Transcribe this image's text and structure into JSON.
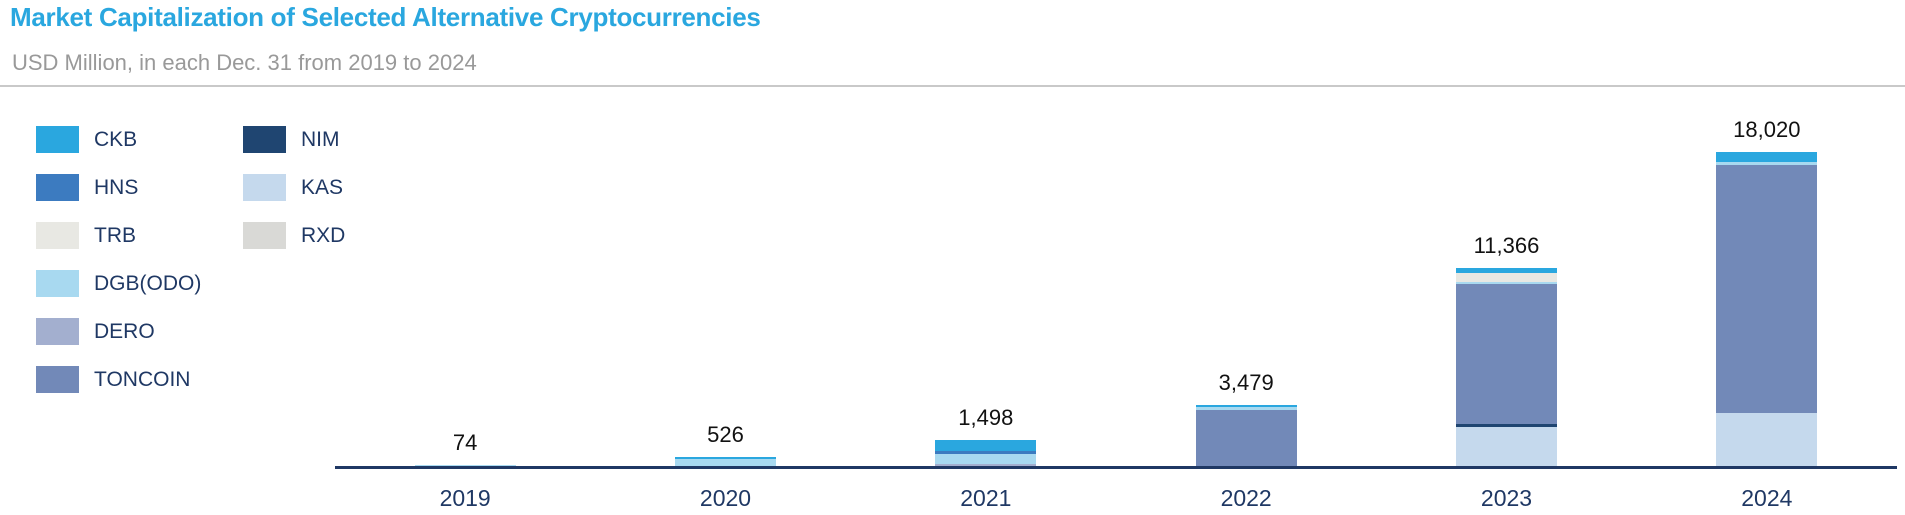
{
  "header": {
    "title": "Market Capitalization of Selected Alternative Cryptocurrencies",
    "subtitle": "USD Million, in each Dec. 31 from 2019 to 2024"
  },
  "colors": {
    "title_text": "#2AA7DF",
    "subtitle_text": "#999999",
    "axis_and_category_text": "#1F3864",
    "value_label_text": "#111111",
    "divider_line": "#C9C9C9"
  },
  "chart_data": {
    "type": "bar",
    "stacked": true,
    "title": "Market Capitalization of Selected Alternative Cryptocurrencies",
    "subtitle": "USD Million, in each Dec. 31 from 2019 to 2024",
    "unit": "USD Million",
    "categories": [
      "2019",
      "2020",
      "2021",
      "2022",
      "2023",
      "2024"
    ],
    "totals": [
      74,
      526,
      1498,
      3479,
      11366,
      18020
    ],
    "total_labels": [
      "74",
      "526",
      "1,498",
      "3,479",
      "11,366",
      "18,020"
    ],
    "series": [
      {
        "name": "CKB",
        "color": "#2AA7DF",
        "values": [
          0,
          96,
          640,
          110,
          290,
          560
        ]
      },
      {
        "name": "HNS",
        "color": "#3C7BC0",
        "values": [
          0,
          0,
          145,
          0,
          0,
          0
        ]
      },
      {
        "name": "TRB",
        "color": "#E8E8E3",
        "values": [
          0,
          0,
          0,
          0,
          510,
          0
        ]
      },
      {
        "name": "DGB(ODO)",
        "color": "#A8D9F0",
        "values": [
          74,
          430,
          570,
          165,
          100,
          210
        ]
      },
      {
        "name": "DERO",
        "color": "#A3AFCF",
        "values": [
          0,
          0,
          143,
          0,
          0,
          0
        ]
      },
      {
        "name": "TONCOIN",
        "color": "#7289B8",
        "values": [
          0,
          0,
          0,
          3204,
          8070,
          14200
        ]
      },
      {
        "name": "NIM",
        "color": "#1F4571",
        "values": [
          0,
          0,
          0,
          0,
          170,
          0
        ]
      },
      {
        "name": "KAS",
        "color": "#C5D9ED",
        "values": [
          0,
          0,
          0,
          0,
          2226,
          3050
        ]
      },
      {
        "name": "RXD",
        "color": "#D9D9D6",
        "values": [
          0,
          0,
          0,
          0,
          0,
          0
        ]
      }
    ],
    "stack_order_bottom_to_top": [
      "RXD",
      "KAS",
      "NIM",
      "TONCOIN",
      "DERO",
      "DGB(ODO)",
      "TRB",
      "HNS",
      "CKB"
    ],
    "legend_columns": [
      [
        "CKB",
        "HNS",
        "TRB",
        "DGB(ODO)",
        "DERO",
        "TONCOIN"
      ],
      [
        "NIM",
        "KAS",
        "RXD"
      ]
    ],
    "legend_position": "top-left",
    "gridlines": false,
    "y_axis_visible": false,
    "x_axis_baseline_only": true
  }
}
